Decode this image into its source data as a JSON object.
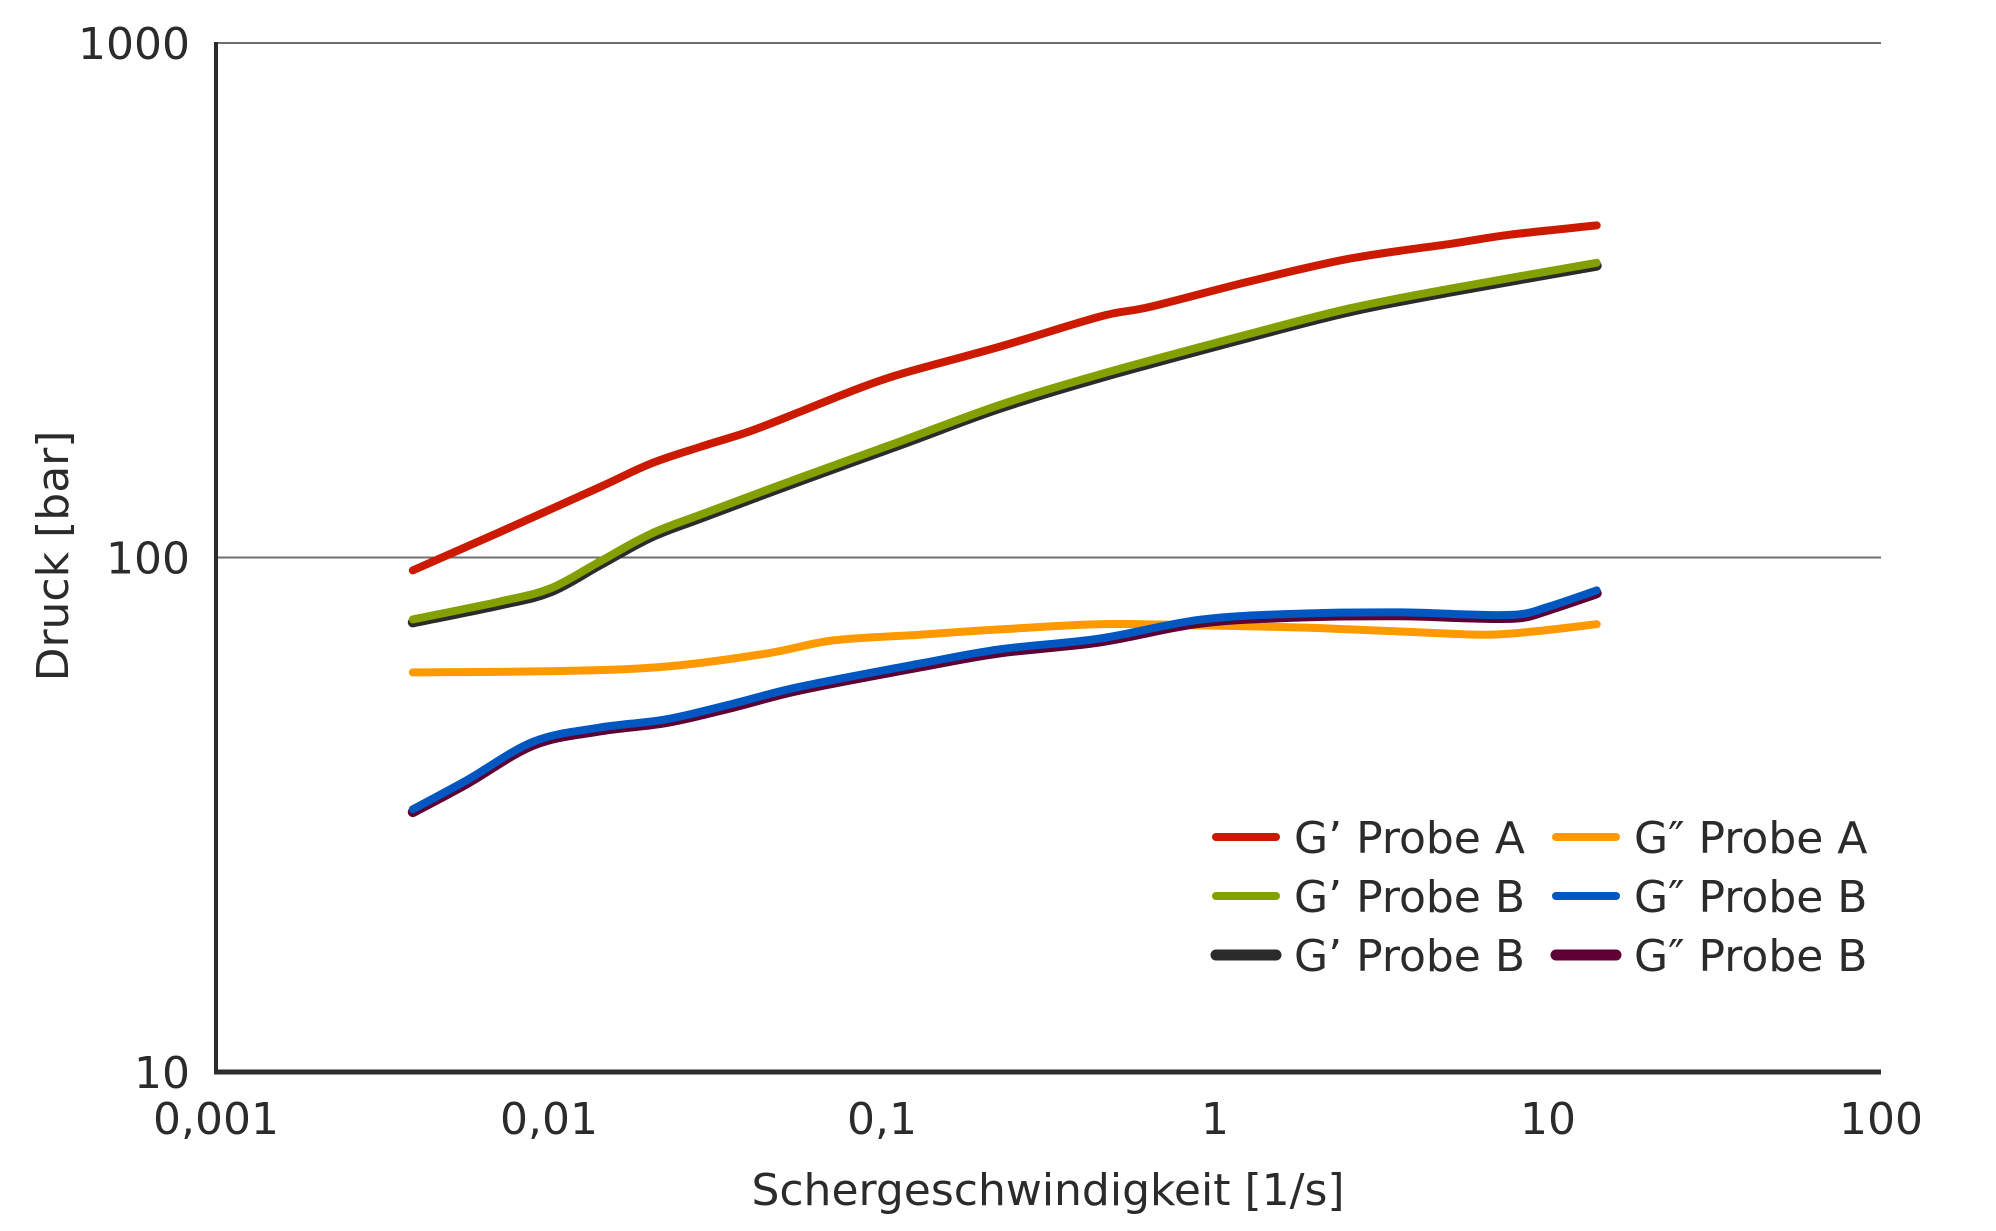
{
  "chart_data": {
    "type": "line",
    "title": "",
    "xlabel": "Schergeschwindigkeit [1/s]",
    "ylabel": "Druck [bar]",
    "xscale": "log",
    "yscale": "log",
    "xlim": [
      0.001,
      100
    ],
    "ylim": [
      10,
      1000
    ],
    "x_ticks": [
      0.001,
      0.01,
      0.1,
      1,
      10,
      100
    ],
    "x_tick_labels": [
      "0,001",
      "0,01",
      "0,1",
      "1",
      "10",
      "100"
    ],
    "y_ticks": [
      10,
      100,
      1000
    ],
    "y_tick_labels": [
      "10",
      "100",
      "1000"
    ],
    "grid": "horizontal at major y ticks",
    "legend": {
      "placement": "bottom-right",
      "columns": 2
    },
    "series": [
      {
        "name": "G’ Probe A",
        "color": "#cc1a00",
        "x": [
          0.0039,
          0.0071,
          0.0142,
          0.0201,
          0.0284,
          0.0402,
          0.0568,
          0.0802,
          0.113,
          0.226,
          0.452,
          0.638,
          1.27,
          2.54,
          5.08,
          7.69,
          14.0
        ],
        "y": [
          94.4,
          112,
          137,
          152,
          164,
          176,
          192,
          210,
          227,
          257,
          294,
          307,
          344,
          381,
          407,
          424,
          442
        ]
      },
      {
        "name": "G’ Probe B",
        "color": "#2b2b2b",
        "outline": true,
        "x": [
          0.0039,
          0.0071,
          0.0101,
          0.0142,
          0.0201,
          0.0284,
          0.0568,
          0.113,
          0.226,
          0.452,
          1.27,
          2.54,
          5.08,
          14.0
        ],
        "y": [
          74.8,
          81.0,
          85.9,
          96.9,
          109.5,
          119.4,
          141.1,
          165.8,
          195.4,
          224.0,
          268.5,
          301.0,
          328.7,
          369.1
        ]
      },
      {
        "name": "G’ Probe B",
        "color": "#82a000",
        "x": [
          0.0039,
          0.0071,
          0.0101,
          0.0142,
          0.0201,
          0.0284,
          0.0568,
          0.113,
          0.226,
          0.452,
          1.27,
          2.54,
          5.08,
          14.0
        ],
        "y": [
          75.8,
          82.1,
          87.1,
          98.2,
          111,
          121,
          143,
          168,
          198,
          227,
          272,
          305,
          333,
          374
        ]
      },
      {
        "name": "G″ Probe A",
        "color": "#ff9900",
        "x": [
          0.0039,
          0.0113,
          0.0226,
          0.0452,
          0.0714,
          0.13,
          0.226,
          0.452,
          0.903,
          1.81,
          3.61,
          6.41,
          9.02,
          14.0
        ],
        "y": [
          59.8,
          60.2,
          61.4,
          65.1,
          69.0,
          70.8,
          72.5,
          74.2,
          73.8,
          73.1,
          71.8,
          70.8,
          71.8,
          74.2
        ]
      },
      {
        "name": "G″ Probe B",
        "color": "#5e0033",
        "outline": true,
        "x": [
          0.0039,
          0.0057,
          0.009,
          0.0142,
          0.0226,
          0.0358,
          0.0568,
          0.13,
          0.226,
          0.452,
          0.903,
          1.81,
          3.61,
          5.74,
          8.15,
          10.1,
          14.0
        ],
        "y": [
          32.0,
          36.5,
          43.3,
          46.1,
          47.9,
          51.3,
          55.4,
          61.4,
          65.4,
          68.7,
          74.7,
          76.8,
          77.2,
          76.5,
          76.5,
          79.3,
          85.2
        ]
      },
      {
        "name": "G″ Probe B",
        "color": "#0057c2",
        "x": [
          0.0039,
          0.0057,
          0.009,
          0.0142,
          0.0226,
          0.0358,
          0.0568,
          0.13,
          0.226,
          0.452,
          0.903,
          1.81,
          3.61,
          5.74,
          8.15,
          10.1,
          14.0
        ],
        "y": [
          32.4,
          37.0,
          43.9,
          46.7,
          48.5,
          52.0,
          56.1,
          62.2,
          66.3,
          69.6,
          75.7,
          77.8,
          78.2,
          77.5,
          77.5,
          80.3,
          86.3
        ]
      }
    ],
    "legend_entries": [
      {
        "label": "G’ Probe A",
        "color": "#cc1a00"
      },
      {
        "label": "G’ Probe B",
        "color": "#82a000"
      },
      {
        "label": "G’ Probe B",
        "color": "#2b2b2b"
      },
      {
        "label": "G″ Probe A",
        "color": "#ff9900"
      },
      {
        "label": "G″ Probe B",
        "color": "#0057c2"
      },
      {
        "label": "G″ Probe B",
        "color": "#5e0033"
      }
    ]
  }
}
